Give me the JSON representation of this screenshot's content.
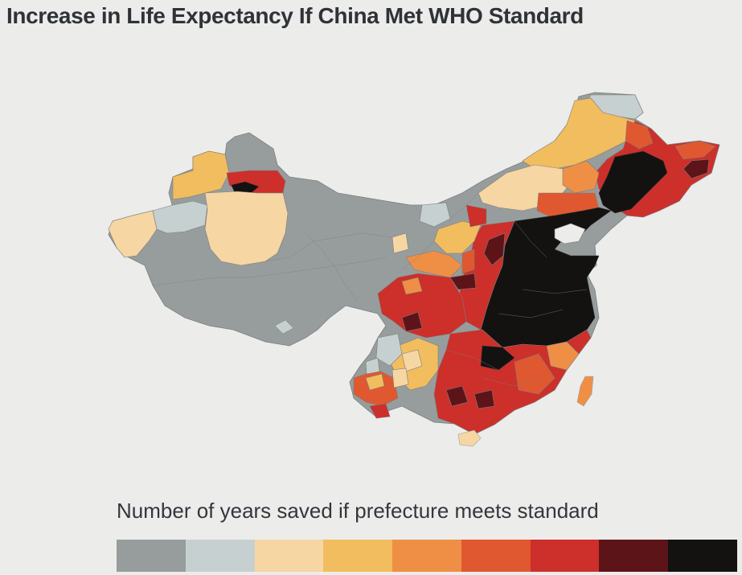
{
  "title": "Increase in Life Expectancy If China Met WHO Standard",
  "legend": {
    "caption": "Number of years saved if prefecture meets standard",
    "colors": [
      "#979d9d",
      "#c6d0d0",
      "#f6d6a3",
      "#f2bd5e",
      "#ef8f46",
      "#e0582f",
      "#cd2f2a",
      "#5d1418",
      "#141111"
    ]
  },
  "palette": {
    "border": "#7d7d7d",
    "island_border": "#a0a0a0"
  }
}
